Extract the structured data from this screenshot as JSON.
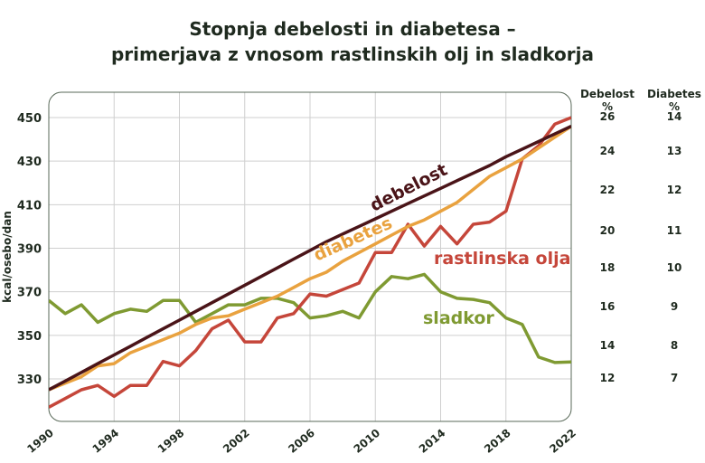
{
  "chart_data": {
    "type": "line",
    "title": [
      "Stopnja debelosti in diabetesa –",
      "primerjava z vnosom rastlinskih olj in sladkorja"
    ],
    "ylabel": "kcal/osebo/dan",
    "xlabel": "",
    "ylim": [
      314,
      456
    ],
    "xlim": [
      1990,
      2022
    ],
    "grid": true,
    "y_ticks": [
      330,
      350,
      370,
      390,
      410,
      430,
      450
    ],
    "x_ticks": [
      1990,
      1994,
      1998,
      2002,
      2006,
      2010,
      2014,
      2018,
      2022
    ],
    "right_axes": [
      {
        "label": "Debelost %",
        "ticks": [
          "26",
          "24",
          "22",
          "20",
          "18",
          "16",
          "14",
          "12"
        ]
      },
      {
        "label": "Diabetes %",
        "ticks": [
          "14",
          "13",
          "12",
          "11",
          "10",
          "9",
          "8",
          "7"
        ]
      }
    ],
    "x": [
      1990,
      1991,
      1992,
      1993,
      1994,
      1995,
      1996,
      1997,
      1998,
      1999,
      2000,
      2001,
      2002,
      2003,
      2004,
      2005,
      2006,
      2007,
      2008,
      2009,
      2010,
      2011,
      2012,
      2013,
      2014,
      2015,
      2016,
      2017,
      2018,
      2019,
      2020,
      2021,
      2022
    ],
    "series": [
      {
        "name": "debelost",
        "color": "#4a1418",
        "values": [
          325,
          329,
          333,
          337,
          341,
          345,
          349,
          353,
          357,
          361,
          365,
          369,
          373,
          377,
          381,
          385,
          389,
          393,
          396.5,
          400,
          403.5,
          407,
          410.5,
          414,
          417.5,
          421,
          424.5,
          428,
          432,
          435.5,
          439,
          442.5,
          446
        ]
      },
      {
        "name": "diabetes",
        "color": "#e9a23f",
        "values": [
          325,
          328,
          331,
          336,
          337,
          342,
          345,
          348,
          351,
          355,
          358,
          359,
          362,
          365,
          368,
          372,
          376,
          379,
          384,
          388,
          392,
          396,
          400,
          403,
          407,
          411,
          417,
          423,
          427,
          431,
          436,
          441,
          446
        ]
      },
      {
        "name": "rastlinska olja",
        "color": "#c5463a",
        "values": [
          317,
          321,
          325,
          327,
          322,
          327,
          327,
          338,
          336,
          343,
          353,
          357,
          347,
          347,
          358,
          360,
          369,
          368,
          371,
          374,
          388,
          388,
          401,
          391,
          400,
          392,
          401,
          402,
          407,
          431,
          437,
          447,
          450
        ]
      },
      {
        "name": "sladkor",
        "color": "#7f9a32",
        "values": [
          366,
          360,
          364,
          356,
          360,
          362,
          361,
          366,
          366,
          356,
          360,
          364,
          364,
          367,
          367,
          365,
          358,
          359,
          361,
          358,
          370,
          377,
          376,
          378,
          370,
          367,
          366.5,
          365,
          358,
          355,
          340,
          337.5,
          337.8
        ]
      }
    ]
  }
}
